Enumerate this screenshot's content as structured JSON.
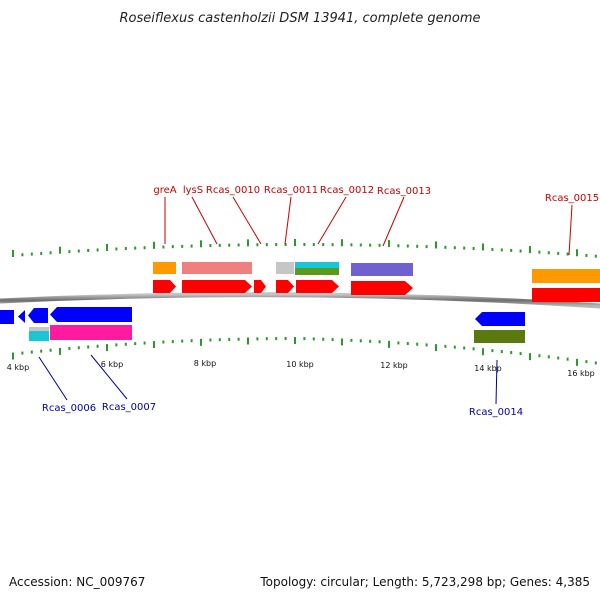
{
  "title": "Roseiflexus castenholzii DSM 13941, complete genome",
  "footer": {
    "accession": "Accession: NC_009767",
    "summary": "Topology: circular; Length: 5,723,298 bp; Genes: 4,385"
  },
  "colors": {
    "forward_label": "#cc0000",
    "reverse_label": "#0000aa",
    "tick": "#2a9a2a",
    "backbone": "#8a8a8a",
    "cds_forward": "#ff0000",
    "cds_reverse": "#0000ff"
  },
  "scale_labels": [
    "4 kbp",
    "6 kbp",
    "8 kbp",
    "10 kbp",
    "12 kbp",
    "14 kbp",
    "16 kbp"
  ],
  "gene_labels": [
    {
      "name": "greA",
      "strand": "forward"
    },
    {
      "name": "lysS",
      "strand": "forward"
    },
    {
      "name": "Rcas_0010",
      "strand": "forward"
    },
    {
      "name": "Rcas_0011",
      "strand": "forward"
    },
    {
      "name": "Rcas_0012",
      "strand": "forward"
    },
    {
      "name": "Rcas_0013",
      "strand": "forward"
    },
    {
      "name": "Rcas_0015",
      "strand": "forward"
    },
    {
      "name": "Rcas_0006",
      "strand": "reverse"
    },
    {
      "name": "Rcas_0007",
      "strand": "reverse"
    },
    {
      "name": "Rcas_0014",
      "strand": "reverse"
    }
  ]
}
